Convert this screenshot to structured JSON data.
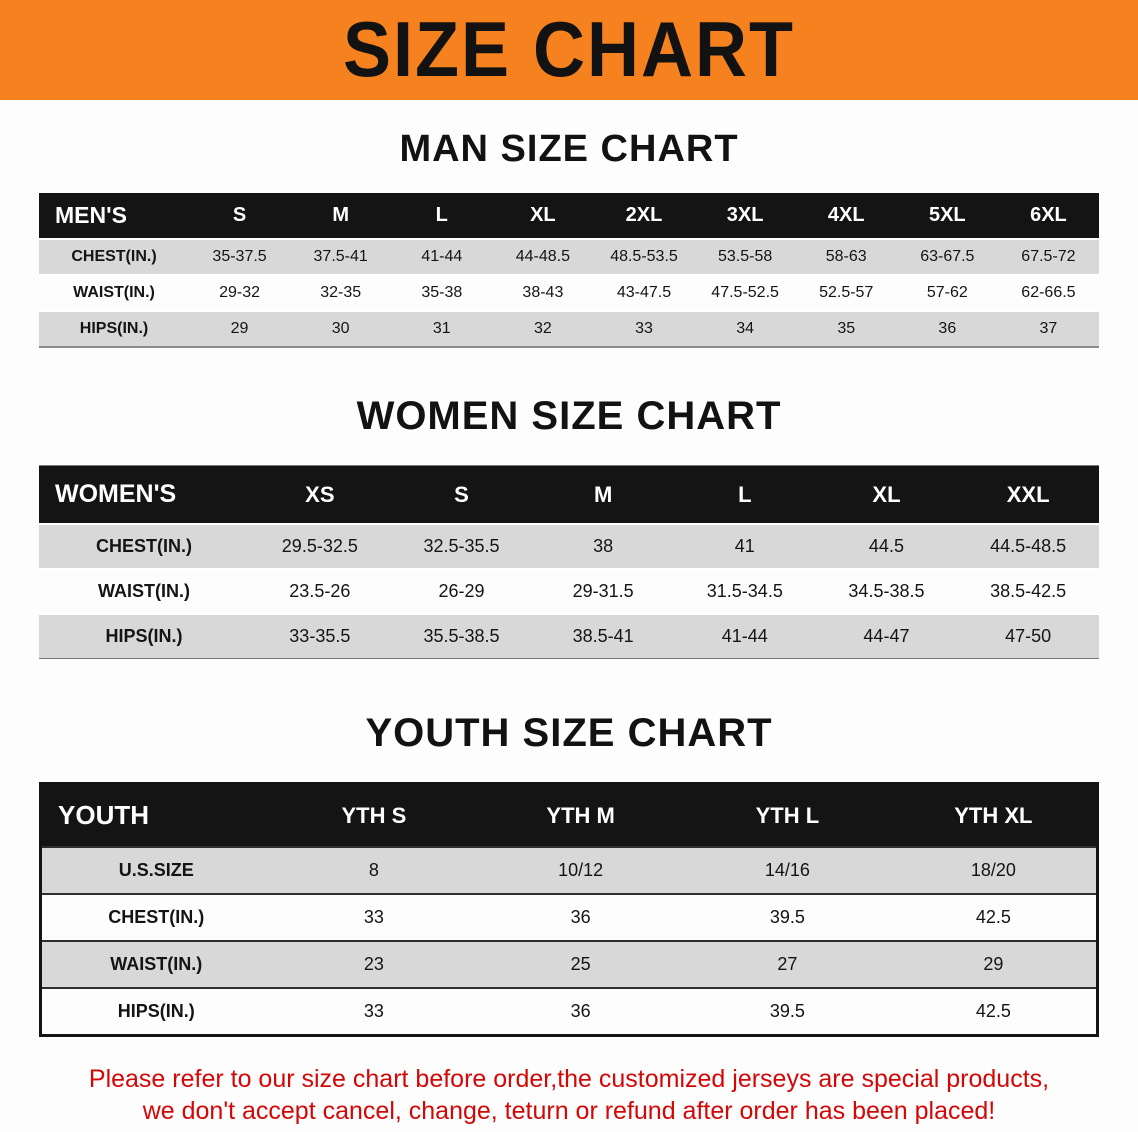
{
  "banner": {
    "title": "SIZE CHART"
  },
  "man": {
    "heading": "MAN SIZE CHART",
    "corner": "MEN'S",
    "columns": [
      "S",
      "M",
      "L",
      "XL",
      "2XL",
      "3XL",
      "4XL",
      "5XL",
      "6XL"
    ],
    "rows": [
      {
        "label": "CHEST(IN.)",
        "values": [
          "35-37.5",
          "37.5-41",
          "41-44",
          "44-48.5",
          "48.5-53.5",
          "53.5-58",
          "58-63",
          "63-67.5",
          "67.5-72"
        ]
      },
      {
        "label": "WAIST(IN.)",
        "values": [
          "29-32",
          "32-35",
          "35-38",
          "38-43",
          "43-47.5",
          "47.5-52.5",
          "52.5-57",
          "57-62",
          "62-66.5"
        ]
      },
      {
        "label": "HIPS(IN.)",
        "values": [
          "29",
          "30",
          "31",
          "32",
          "33",
          "34",
          "35",
          "36",
          "37"
        ]
      }
    ]
  },
  "women": {
    "heading": "WOMEN SIZE CHART",
    "corner": "WOMEN'S",
    "columns": [
      "XS",
      "S",
      "M",
      "L",
      "XL",
      "XXL"
    ],
    "rows": [
      {
        "label": "CHEST(IN.)",
        "values": [
          "29.5-32.5",
          "32.5-35.5",
          "38",
          "41",
          "44.5",
          "44.5-48.5"
        ]
      },
      {
        "label": "WAIST(IN.)",
        "values": [
          "23.5-26",
          "26-29",
          "29-31.5",
          "31.5-34.5",
          "34.5-38.5",
          "38.5-42.5"
        ]
      },
      {
        "label": "HIPS(IN.)",
        "values": [
          "33-35.5",
          "35.5-38.5",
          "38.5-41",
          "41-44",
          "44-47",
          "47-50"
        ]
      }
    ]
  },
  "youth": {
    "heading": "YOUTH SIZE CHART",
    "corner": "YOUTH",
    "columns": [
      "YTH S",
      "YTH M",
      "YTH L",
      "YTH XL"
    ],
    "rows": [
      {
        "label": "U.S.SIZE",
        "values": [
          "8",
          "10/12",
          "14/16",
          "18/20"
        ]
      },
      {
        "label": "CHEST(IN.)",
        "values": [
          "33",
          "36",
          "39.5",
          "42.5"
        ]
      },
      {
        "label": "WAIST(IN.)",
        "values": [
          "23",
          "25",
          "27",
          "29"
        ]
      },
      {
        "label": "HIPS(IN.)",
        "values": [
          "33",
          "36",
          "39.5",
          "42.5"
        ]
      }
    ]
  },
  "footer": {
    "line1": "Please refer to our size chart before order,the customized jerseys are special products,",
    "line2": "we don't accept cancel, change, teturn or refund after order has been placed!"
  },
  "colors": {
    "banner_bg": "#f5821f",
    "table_header_bg": "#141414",
    "row_shade_bg": "#d8d8d8",
    "notice_text": "#d40707"
  }
}
